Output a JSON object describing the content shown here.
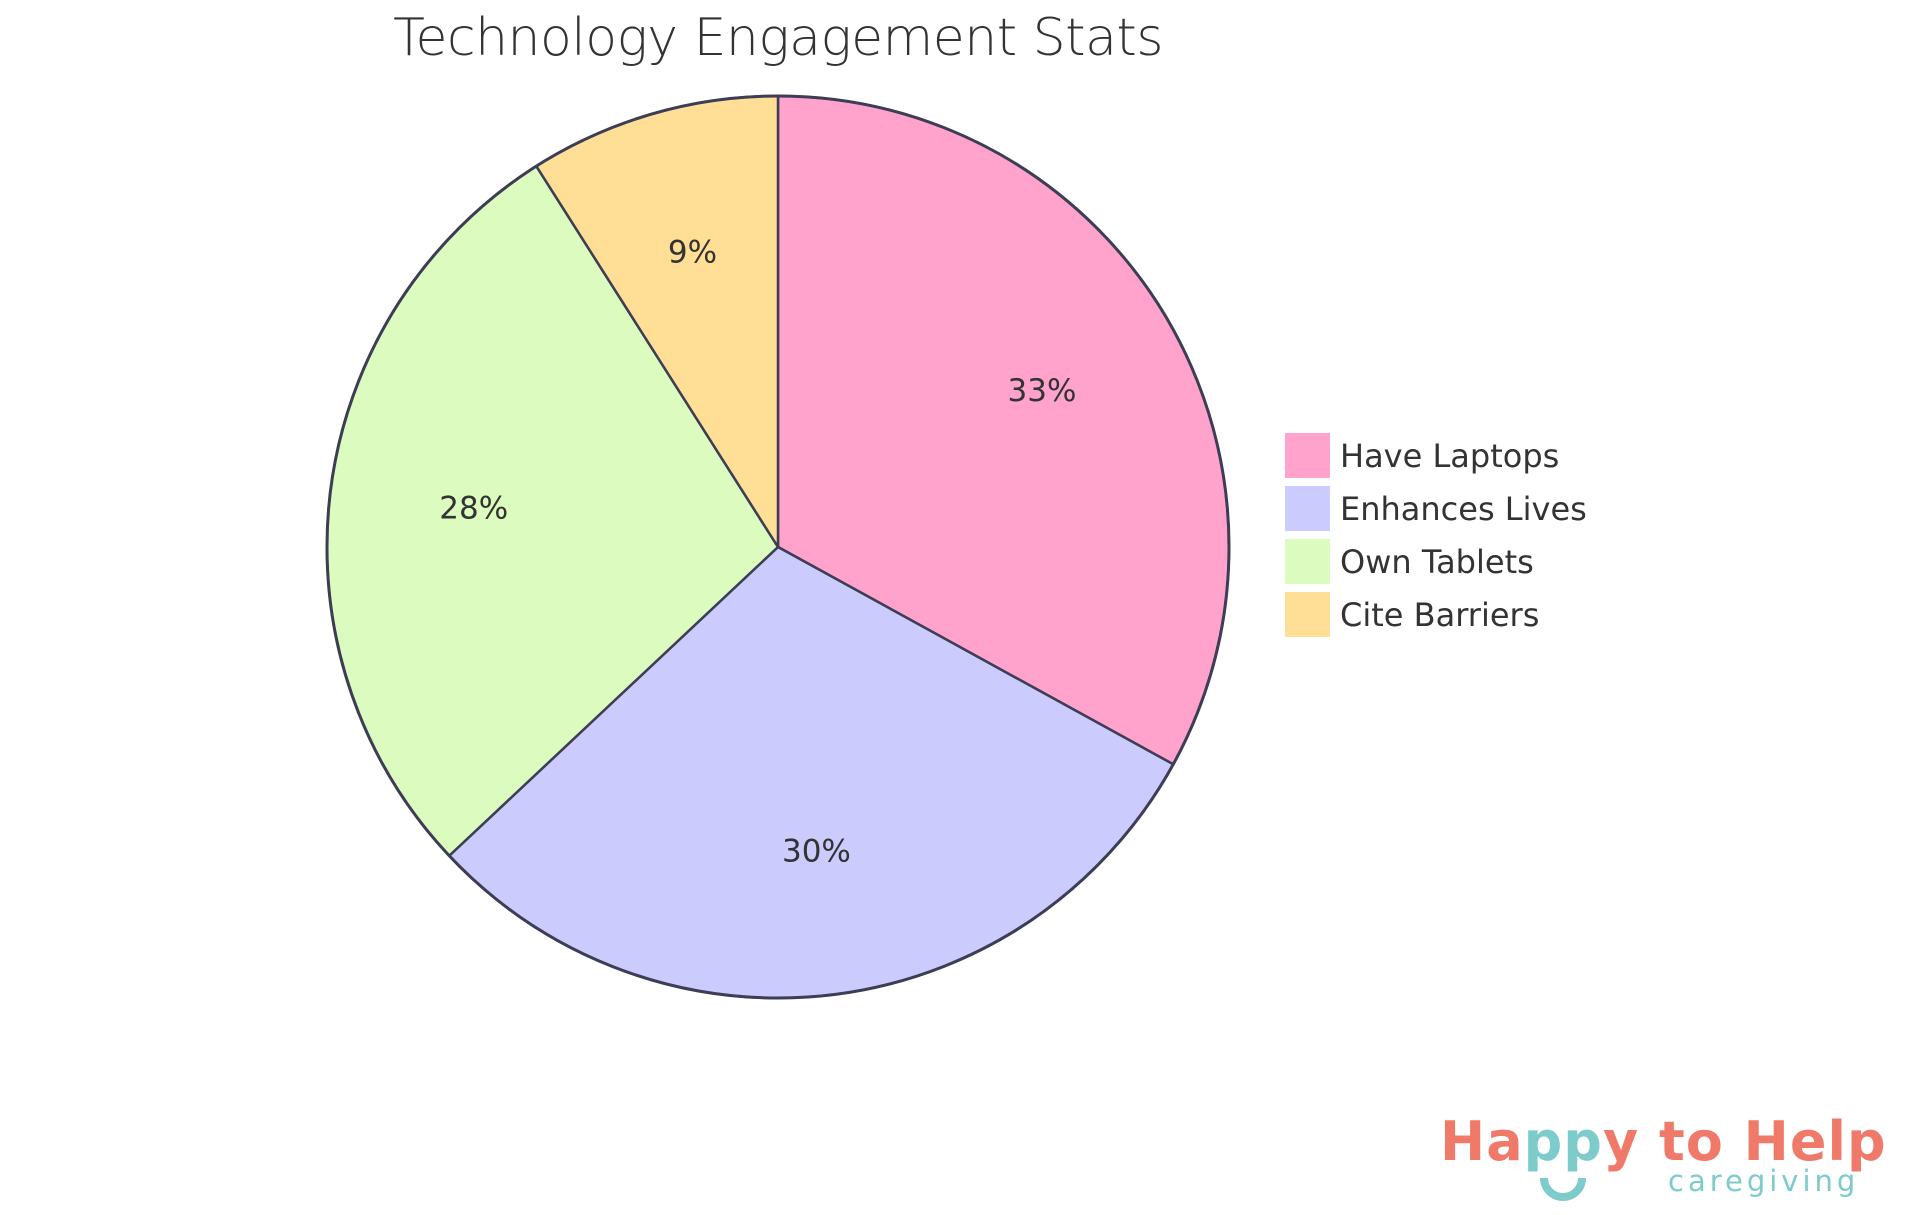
{
  "title": "Technology Engagement Stats",
  "chart_data": {
    "type": "pie",
    "title": "Technology Engagement Stats",
    "categories": [
      "Have Laptops",
      "Enhances Lives",
      "Own Tablets",
      "Cite Barriers"
    ],
    "values": [
      33,
      30,
      28,
      9
    ],
    "labels": [
      "33%",
      "30%",
      "28%",
      "9%"
    ],
    "colors": [
      "#ffa3cd",
      "#cbcbfd",
      "#dcfbbe",
      "#ffde95"
    ],
    "stroke_color": "#3d3d55",
    "start_angle": "12 o'clock, clockwise",
    "legend_position": "right"
  },
  "legend": {
    "items": [
      {
        "label": "Have Laptops",
        "color": "#ffa3cd"
      },
      {
        "label": "Enhances Lives",
        "color": "#cbcbfd"
      },
      {
        "label": "Own Tablets",
        "color": "#dcfbbe"
      },
      {
        "label": "Cite Barriers",
        "color": "#ffde95"
      }
    ]
  },
  "logo": {
    "part1": "Ha",
    "part2": "pp",
    "part3": "y to Help",
    "subtitle": "caregiving",
    "primary_color": "#f07a6a",
    "secondary_color": "#7ecbcb"
  }
}
